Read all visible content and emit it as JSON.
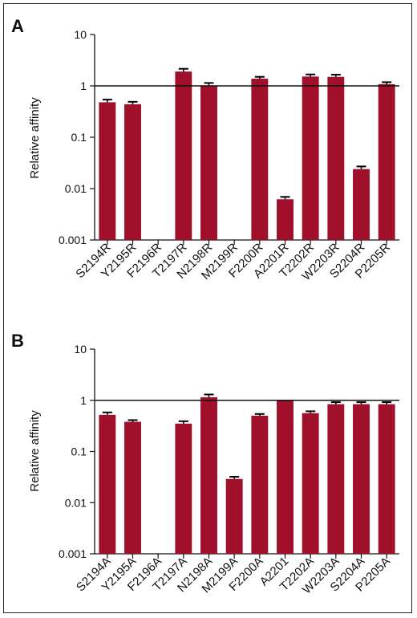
{
  "colors": {
    "bar": "#a0102a",
    "axis": "#111111",
    "reference_line": "#111111"
  },
  "chart_data": [
    {
      "panel": "A",
      "type": "bar",
      "ylabel": "Relative affinity",
      "yscale": "log",
      "ylim": [
        0.001,
        10
      ],
      "yticks": [
        "0.001",
        "0.01",
        "0.1",
        "1",
        "10"
      ],
      "reference_line": 1,
      "error_bars": true,
      "categories": [
        "S2194R",
        "Y2195R",
        "F2196R",
        "T2197R",
        "N2198R",
        "M2199R",
        "F2200R",
        "A2201R",
        "T2202R",
        "W2203R",
        "S2204R",
        "P2205R"
      ],
      "values": [
        0.48,
        0.44,
        null,
        1.9,
        1.02,
        null,
        1.38,
        0.0062,
        1.52,
        1.5,
        0.024,
        1.08
      ],
      "errors": [
        0.06,
        0.05,
        null,
        0.25,
        0.12,
        null,
        0.12,
        0.0007,
        0.15,
        0.15,
        0.003,
        0.1
      ]
    },
    {
      "panel": "B",
      "type": "bar",
      "ylabel": "Relative affinity",
      "yscale": "log",
      "ylim": [
        0.001,
        10
      ],
      "yticks": [
        "0.001",
        "0.01",
        "0.1",
        "1",
        "10"
      ],
      "reference_line": 1,
      "error_bars": true,
      "categories": [
        "S2194A",
        "Y2195A",
        "F2196A",
        "T2197A",
        "N2198A",
        "M2199A",
        "F2200A",
        "A2201",
        "T2202A",
        "W2203A",
        "S2204A",
        "P2205A"
      ],
      "values": [
        0.52,
        0.38,
        null,
        0.35,
        1.15,
        0.029,
        0.5,
        1.0,
        0.56,
        0.84,
        0.84,
        0.84
      ],
      "errors": [
        0.06,
        0.03,
        null,
        0.04,
        0.15,
        0.003,
        0.04,
        null,
        0.05,
        0.08,
        0.08,
        0.08
      ]
    }
  ]
}
